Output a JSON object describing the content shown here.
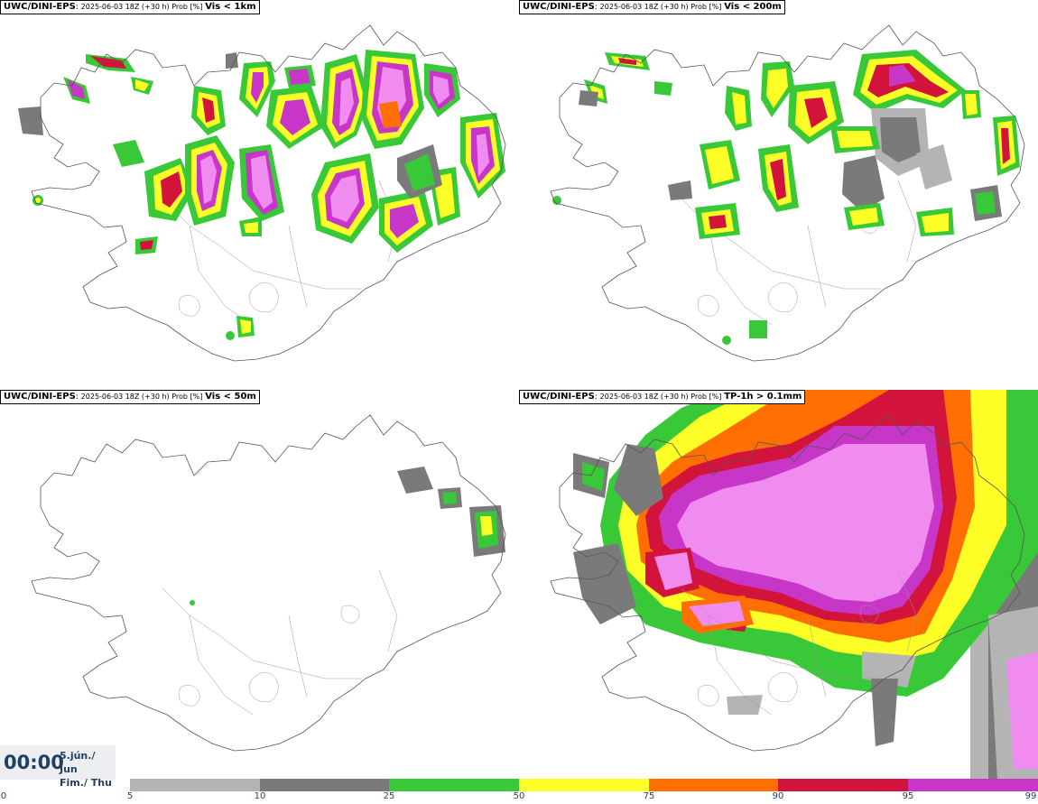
{
  "panels": [
    {
      "model": "UWC/DINI-EPS",
      "meta": "2025-06-03 18Z (+30 h) Prob [%]",
      "field": "Vis < 1km"
    },
    {
      "model": "UWC/DINI-EPS",
      "meta": "2025-06-03 18Z (+30 h) Prob [%]",
      "field": "Vis < 200m"
    },
    {
      "model": "UWC/DINI-EPS",
      "meta": "2025-06-03 18Z (+30 h) Prob [%]",
      "field": "Vis < 50m"
    },
    {
      "model": "UWC/DINI-EPS",
      "meta": "2025-06-03 18Z (+30 h) Prob [%]",
      "field": "TP-1h > 0.1mm"
    }
  ],
  "valid_time": {
    "time": "00:00",
    "date_line1": "5.jún./ Jun",
    "date_line2": "Fim./ Thu"
  },
  "legend": {
    "ticks": [
      "0",
      "5",
      "10",
      "25",
      "50",
      "75",
      "90",
      "95",
      "99"
    ],
    "colors": [
      "#ffffff",
      "#b4b4b4",
      "#7a7a7a",
      "#38c838",
      "#ffff28",
      "#ff6e00",
      "#d2143c",
      "#c836c8",
      "#f08cf0"
    ]
  },
  "colors": {
    "prob_5_10": "#b4b4b4",
    "prob_10_25": "#7a7a7a",
    "prob_25_50": "#38c838",
    "prob_50_75": "#ffff28",
    "prob_75_90": "#ff6e00",
    "prob_90_95": "#d2143c",
    "prob_95_99": "#c836c8",
    "prob_99_plus": "#f08cf0"
  }
}
